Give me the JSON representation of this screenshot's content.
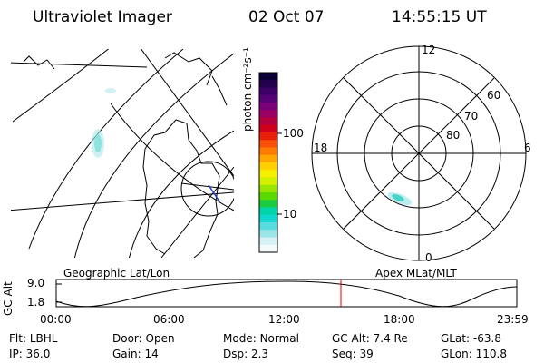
{
  "header": {
    "instrument": "Ultraviolet Imager",
    "date": "02 Oct 07",
    "time": "14:55:15 UT"
  },
  "colorbar": {
    "label": "photon cm⁻²s⁻¹",
    "ticks": [
      "100",
      "10"
    ],
    "colors": [
      "#0b0033",
      "#24004f",
      "#3c0068",
      "#580075",
      "#7a007a",
      "#9a0061",
      "#b5003b",
      "#d0001a",
      "#e8200a",
      "#f85008",
      "#ff7a05",
      "#ffa600",
      "#ffd000",
      "#f5f000",
      "#d2f000",
      "#9ae600",
      "#5ad800",
      "#1ccc40",
      "#00d5a8",
      "#10d8d0",
      "#58dcde",
      "#9ce6ea",
      "#d6f2f4",
      "#f4fafa"
    ]
  },
  "geo_map": {
    "caption": "Geographic Lat/Lon"
  },
  "polar_map": {
    "caption": "Apex MLat/MLT",
    "mlt_labels": {
      "top": "12",
      "right": "6",
      "bottom": "0",
      "left": "18"
    },
    "mlat_labels": [
      "60",
      "70",
      "80"
    ]
  },
  "orbit": {
    "axis_label": "GC Alt",
    "y_ticks": [
      "9.0",
      "1.8"
    ],
    "x_ticks": [
      "00:00",
      "06:00",
      "12:00",
      "18:00",
      "23:59"
    ],
    "marker_color": "#e00000"
  },
  "status": {
    "row1": [
      {
        "label": "Flt:",
        "value": "LBHL"
      },
      {
        "label": "Door:",
        "value": "Open"
      },
      {
        "label": "Mode:",
        "value": "Normal"
      },
      {
        "label": "GC Alt:",
        "value": "7.4 Re"
      },
      {
        "label": "GLat:",
        "value": "-63.8"
      }
    ],
    "row2": [
      {
        "label": "IP:",
        "value": "36.0"
      },
      {
        "label": "Gain:",
        "value": "14"
      },
      {
        "label": "Dsp:",
        "value": "2.3"
      },
      {
        "label": "Seq:",
        "value": "39"
      },
      {
        "label": "GLon:",
        "value": "110.8"
      }
    ]
  }
}
